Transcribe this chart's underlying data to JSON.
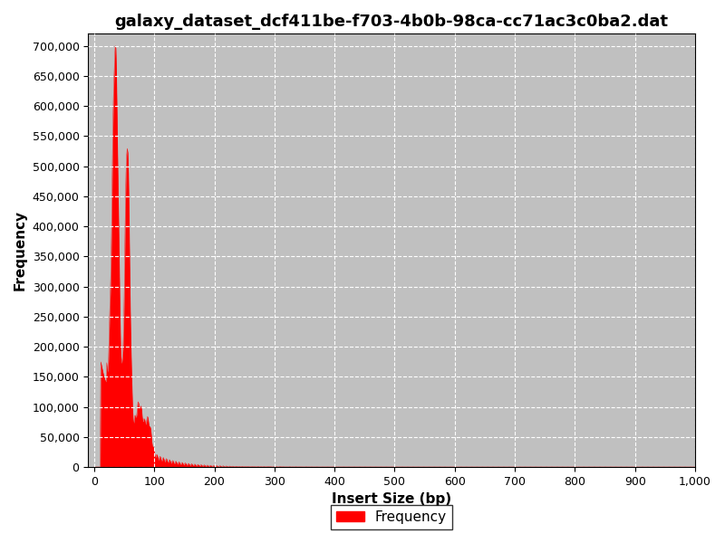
{
  "title": "galaxy_dataset_dcf411be-f703-4b0b-98ca-cc71ac3c0ba2.dat",
  "xlabel": "Insert Size (bp)",
  "ylabel": "Frequency",
  "bar_color": "#ff0000",
  "background_color": "#c0c0c0",
  "xlim": [
    -10,
    1000
  ],
  "ylim": [
    0,
    720000
  ],
  "xticks": [
    0,
    100,
    200,
    300,
    400,
    500,
    600,
    700,
    800,
    900,
    1000
  ],
  "xtick_labels": [
    "0",
    "100",
    "200",
    "300",
    "400",
    "500",
    "600",
    "700",
    "800",
    "900",
    "1,000"
  ],
  "yticks": [
    0,
    50000,
    100000,
    150000,
    200000,
    250000,
    300000,
    350000,
    400000,
    450000,
    500000,
    550000,
    600000,
    650000,
    700000
  ],
  "ytick_labels": [
    "0",
    "50,000",
    "100,000",
    "150,000",
    "200,000",
    "250,000",
    "300,000",
    "350,000",
    "400,000",
    "450,000",
    "500,000",
    "550,000",
    "600,000",
    "650,000",
    "700,000"
  ],
  "title_fontsize": 13,
  "axis_fontsize": 11,
  "tick_fontsize": 9,
  "legend_label": "Frequency",
  "grid_color": "#ffffff",
  "grid_style": "--",
  "grid_alpha": 1.0
}
